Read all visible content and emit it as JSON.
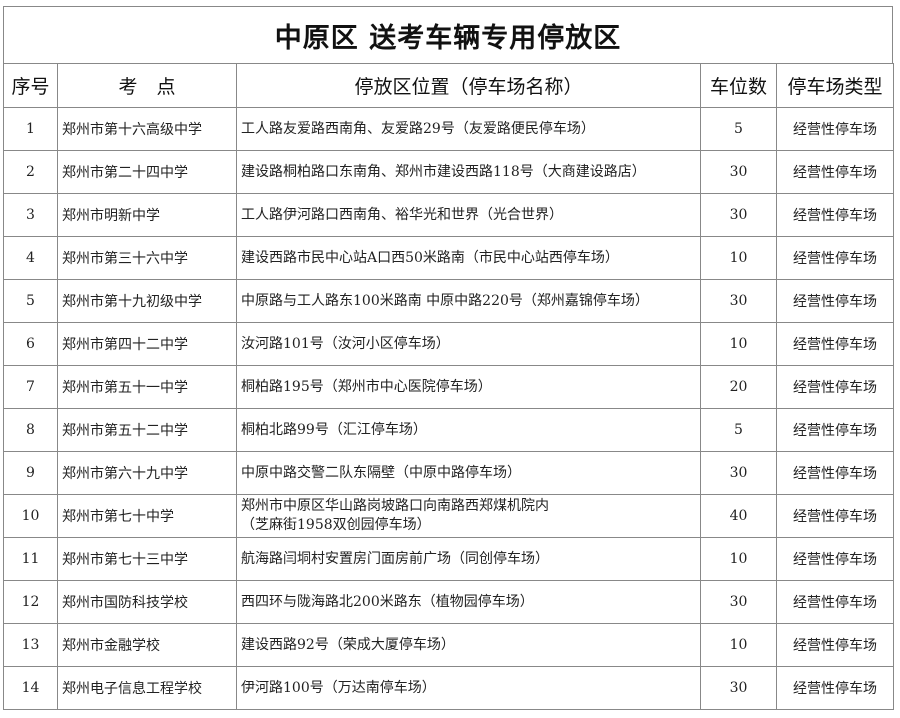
{
  "title": "中原区 送考车辆专用停放区",
  "headers": {
    "seq": "序号",
    "school": "考　点",
    "location": "停放区位置（停车场名称）",
    "spaces": "车位数",
    "type": "停车场类型"
  },
  "rows": [
    {
      "seq": "1",
      "school": "郑州市第十六高级中学",
      "location": "工人路友爱路西南角、友爱路29号（友爱路便民停车场）",
      "spaces": "5",
      "type": "经营性停车场"
    },
    {
      "seq": "2",
      "school": "郑州市第二十四中学",
      "location": "建设路桐柏路口东南角、郑州市建设西路118号（大商建设路店）",
      "spaces": "30",
      "type": "经营性停车场"
    },
    {
      "seq": "3",
      "school": "郑州市明新中学",
      "location": "工人路伊河路口西南角、裕华光和世界（光合世界）",
      "spaces": "30",
      "type": "经营性停车场"
    },
    {
      "seq": "4",
      "school": "郑州市第三十六中学",
      "location": "建设西路市民中心站A口西50米路南（市民中心站西停车场）",
      "spaces": "10",
      "type": "经营性停车场"
    },
    {
      "seq": "5",
      "school": "郑州市第十九初级中学",
      "location": "中原路与工人路东100米路南 中原中路220号（郑州嘉锦停车场）",
      "spaces": "30",
      "type": "经营性停车场"
    },
    {
      "seq": "6",
      "school": "郑州市第四十二中学",
      "location": "汝河路101号（汝河小区停车场）",
      "spaces": "10",
      "type": "经营性停车场"
    },
    {
      "seq": "7",
      "school": "郑州市第五十一中学",
      "location": "桐柏路195号（郑州市中心医院停车场）",
      "spaces": "20",
      "type": "经营性停车场"
    },
    {
      "seq": "8",
      "school": "郑州市第五十二中学",
      "location": "桐柏北路99号（汇江停车场）",
      "spaces": "5",
      "type": "经营性停车场"
    },
    {
      "seq": "9",
      "school": "郑州市第六十九中学",
      "location": "中原中路交警二队东隔壁（中原中路停车场）",
      "spaces": "30",
      "type": "经营性停车场"
    },
    {
      "seq": "10",
      "school": "郑州市第七十中学",
      "location": "郑州市中原区华山路岗坡路口向南路西郑煤机院内",
      "location2": "（芝麻街1958双创园停车场）",
      "spaces": "40",
      "type": "经营性停车场"
    },
    {
      "seq": "11",
      "school": "郑州市第七十三中学",
      "location": "航海路闫垌村安置房门面房前广场（同创停车场）",
      "spaces": "10",
      "type": "经营性停车场"
    },
    {
      "seq": "12",
      "school": "郑州市国防科技学校",
      "location": "西四环与陇海路北200米路东（植物园停车场）",
      "spaces": "30",
      "type": "经营性停车场"
    },
    {
      "seq": "13",
      "school": "郑州市金融学校",
      "location": "建设西路92号（荣成大厦停车场）",
      "spaces": "10",
      "type": "经营性停车场"
    },
    {
      "seq": "14",
      "school": "郑州电子信息工程学校",
      "location": "伊河路100号（万达南停车场）",
      "spaces": "30",
      "type": "经营性停车场"
    }
  ]
}
